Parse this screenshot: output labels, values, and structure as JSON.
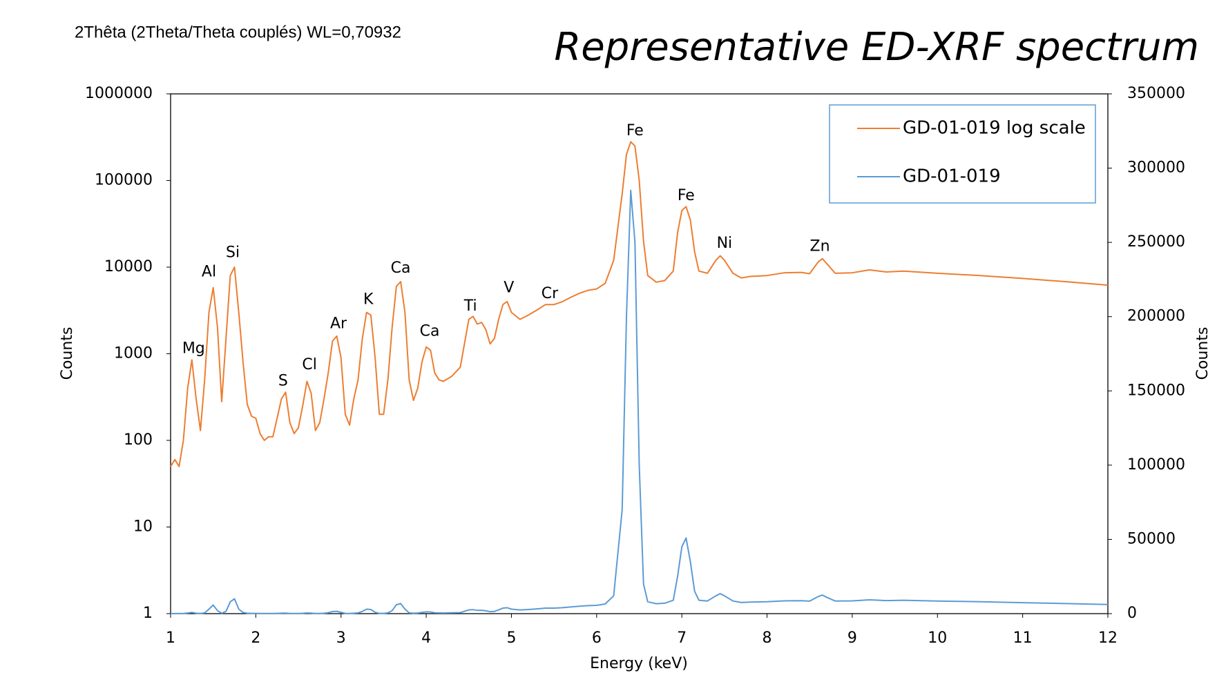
{
  "chart_data": {
    "type": "line",
    "header": "2Thêta (2Theta/Theta couplés) WL=0,70932",
    "title": "Representative ED-XRF spectrum",
    "xlabel": "Energy (keV)",
    "ylabel": "Counts",
    "y2label": "Counts",
    "xlim": [
      1,
      12
    ],
    "xticks": [
      1,
      2,
      3,
      4,
      5,
      6,
      7,
      8,
      9,
      10,
      11,
      12
    ],
    "ylim": [
      1,
      1000000
    ],
    "yscale": "log",
    "yticks": [
      1,
      10,
      100,
      1000,
      10000,
      100000,
      1000000
    ],
    "y2lim": [
      0,
      350000
    ],
    "y2ticks": [
      0,
      50000,
      100000,
      150000,
      200000,
      250000,
      300000,
      350000
    ],
    "legend": "upper right",
    "x": [
      1.0,
      1.05,
      1.1,
      1.15,
      1.2,
      1.25,
      1.3,
      1.35,
      1.4,
      1.45,
      1.5,
      1.55,
      1.6,
      1.65,
      1.7,
      1.75,
      1.8,
      1.85,
      1.9,
      1.95,
      2.0,
      2.05,
      2.1,
      2.15,
      2.2,
      2.25,
      2.3,
      2.35,
      2.4,
      2.45,
      2.5,
      2.55,
      2.6,
      2.65,
      2.7,
      2.75,
      2.8,
      2.85,
      2.9,
      2.95,
      3.0,
      3.05,
      3.1,
      3.15,
      3.2,
      3.25,
      3.3,
      3.35,
      3.4,
      3.45,
      3.5,
      3.55,
      3.6,
      3.65,
      3.7,
      3.75,
      3.8,
      3.85,
      3.9,
      3.95,
      4.0,
      4.05,
      4.1,
      4.15,
      4.2,
      4.3,
      4.4,
      4.5,
      4.55,
      4.6,
      4.65,
      4.7,
      4.75,
      4.8,
      4.85,
      4.9,
      4.95,
      5.0,
      5.1,
      5.2,
      5.3,
      5.4,
      5.5,
      5.6,
      5.7,
      5.8,
      5.9,
      6.0,
      6.1,
      6.2,
      6.3,
      6.35,
      6.4,
      6.45,
      6.5,
      6.55,
      6.6,
      6.7,
      6.8,
      6.9,
      6.95,
      7.0,
      7.05,
      7.1,
      7.15,
      7.2,
      7.3,
      7.4,
      7.45,
      7.5,
      7.6,
      7.7,
      7.8,
      8.0,
      8.2,
      8.4,
      8.5,
      8.6,
      8.65,
      8.7,
      8.8,
      9.0,
      9.2,
      9.4,
      9.6,
      10.0,
      10.5,
      11.0,
      11.5,
      12.0
    ],
    "series": [
      {
        "name": "GD-01-019 log scale",
        "color": "#ed7d31",
        "axis": "y",
        "values": [
          50,
          60,
          50,
          100,
          400,
          850,
          300,
          130,
          500,
          3000,
          5800,
          2000,
          280,
          1500,
          8000,
          10000,
          3000,
          800,
          260,
          190,
          180,
          120,
          100,
          110,
          110,
          180,
          300,
          360,
          160,
          120,
          140,
          250,
          480,
          350,
          130,
          160,
          300,
          600,
          1400,
          1600,
          900,
          200,
          150,
          300,
          500,
          1500,
          3000,
          2800,
          900,
          200,
          200,
          500,
          2000,
          6000,
          6800,
          3000,
          500,
          290,
          400,
          800,
          1200,
          1100,
          600,
          500,
          480,
          550,
          700,
          2500,
          2700,
          2200,
          2300,
          1900,
          1300,
          1500,
          2500,
          3700,
          4000,
          3000,
          2500,
          2800,
          3200,
          3700,
          3700,
          4000,
          4500,
          5000,
          5400,
          5600,
          6500,
          12000,
          70000,
          200000,
          280000,
          250000,
          100000,
          20000,
          8000,
          6700,
          7000,
          9000,
          25000,
          45000,
          50000,
          35000,
          15000,
          9000,
          8500,
          12000,
          13500,
          12000,
          8500,
          7500,
          7800,
          8000,
          8600,
          8700,
          8400,
          11500,
          12500,
          11000,
          8500,
          8600,
          9300,
          8800,
          9000,
          8500,
          8000,
          7400,
          6800,
          6200
        ]
      },
      {
        "name": "GD-01-019",
        "color": "#5b9bd5",
        "axis": "y2",
        "values": [
          50,
          60,
          50,
          100,
          400,
          850,
          300,
          130,
          500,
          3000,
          5800,
          2000,
          280,
          1500,
          8000,
          10000,
          3000,
          800,
          260,
          190,
          180,
          120,
          100,
          110,
          110,
          180,
          300,
          360,
          160,
          120,
          140,
          250,
          480,
          350,
          130,
          160,
          300,
          600,
          1400,
          1600,
          900,
          200,
          150,
          300,
          500,
          1500,
          3000,
          2800,
          900,
          200,
          200,
          500,
          2000,
          6000,
          6800,
          3000,
          500,
          290,
          400,
          800,
          1200,
          1100,
          600,
          500,
          480,
          550,
          700,
          2500,
          2700,
          2200,
          2300,
          1900,
          1300,
          1500,
          2500,
          3700,
          4000,
          3000,
          2500,
          2800,
          3200,
          3700,
          3700,
          4000,
          4500,
          5000,
          5400,
          5600,
          6500,
          12000,
          70000,
          200000,
          285000,
          250000,
          100000,
          20000,
          8000,
          6700,
          7000,
          9000,
          25000,
          45000,
          51000,
          35000,
          15000,
          9000,
          8500,
          12000,
          13500,
          12000,
          8500,
          7500,
          7800,
          8000,
          8600,
          8700,
          8400,
          11500,
          12500,
          11000,
          8500,
          8600,
          9300,
          8800,
          9000,
          8500,
          8000,
          7400,
          6800,
          6200
        ]
      }
    ],
    "annotations": [
      {
        "text": "Mg",
        "x": 1.27,
        "y": 1140
      },
      {
        "text": "Al",
        "x": 1.45,
        "y": 8700
      },
      {
        "text": "Si",
        "x": 1.73,
        "y": 14500
      },
      {
        "text": "S",
        "x": 2.32,
        "y": 480
      },
      {
        "text": "Cl",
        "x": 2.63,
        "y": 740
      },
      {
        "text": "Ar",
        "x": 2.97,
        "y": 2200
      },
      {
        "text": "K",
        "x": 3.32,
        "y": 4200
      },
      {
        "text": "Ca",
        "x": 3.7,
        "y": 9600
      },
      {
        "text": "Ca",
        "x": 4.04,
        "y": 1800
      },
      {
        "text": "Ti",
        "x": 4.52,
        "y": 3500
      },
      {
        "text": "V",
        "x": 4.97,
        "y": 5700
      },
      {
        "text": "Cr",
        "x": 5.45,
        "y": 4900
      },
      {
        "text": "Fe",
        "x": 6.45,
        "y": 370000
      },
      {
        "text": "Fe",
        "x": 7.05,
        "y": 66000
      },
      {
        "text": "Ni",
        "x": 7.5,
        "y": 18600
      },
      {
        "text": "Zn",
        "x": 8.62,
        "y": 17200
      }
    ]
  }
}
